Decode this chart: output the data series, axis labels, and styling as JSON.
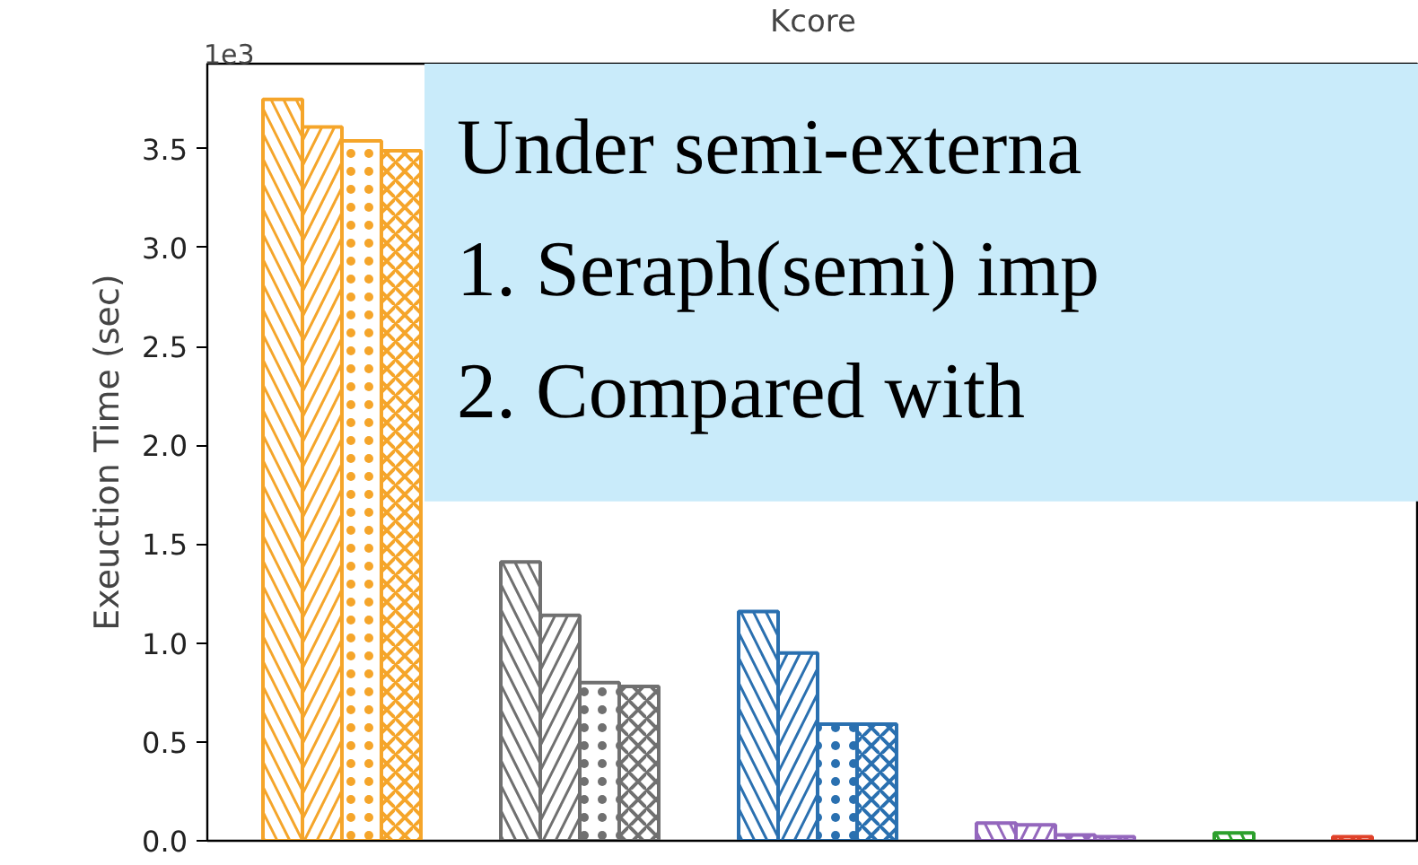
{
  "chart_data": {
    "type": "bar",
    "title": "Kcore",
    "ylabel": "Exeuction Time (sec)",
    "categories": [
      null,
      null,
      null,
      null,
      null
    ],
    "series": [
      {
        "colors": [
          "#f5a52a",
          "#707070",
          "#2a70b0",
          "#9467bd",
          "#2ca02c"
        ],
        "values": [
          3.75,
          1.41,
          1.16,
          0.09,
          0.04
        ]
      },
      {
        "colors": [
          "#f5a52a",
          "#707070",
          "#2a70b0",
          "#9467bd",
          null
        ],
        "values": [
          3.61,
          1.14,
          0.95,
          0.08,
          null
        ]
      },
      {
        "colors": [
          "#f5a52a",
          "#707070",
          "#2a70b0",
          "#9467bd",
          null
        ],
        "values": [
          3.54,
          0.8,
          0.59,
          0.03,
          null
        ]
      },
      {
        "colors": [
          "#f5a52a",
          "#707070",
          "#2a70b0",
          "#9467bd",
          "#e0422a"
        ],
        "values": [
          3.49,
          0.78,
          0.59,
          0.02,
          0.02
        ]
      }
    ],
    "ylim": [
      0,
      3.93
    ],
    "yticks": [
      {
        "value": 0,
        "label": "0.0"
      },
      {
        "value": 0.5,
        "label": "0.5"
      },
      {
        "value": 1,
        "label": "1.0"
      },
      {
        "value": 1.5,
        "label": "1.5"
      },
      {
        "value": 2,
        "label": "2.0"
      },
      {
        "value": 2.5,
        "label": "2.5"
      },
      {
        "value": 3,
        "label": "3.0"
      },
      {
        "value": 3.5,
        "label": "3.5"
      }
    ],
    "tick_labels": "y",
    "grid": false,
    "annotations": [
      "1e3",
      "Under semi-externa",
      "1.   Seraph(semi) imp",
      "2.   Compared with"
    ]
  }
}
